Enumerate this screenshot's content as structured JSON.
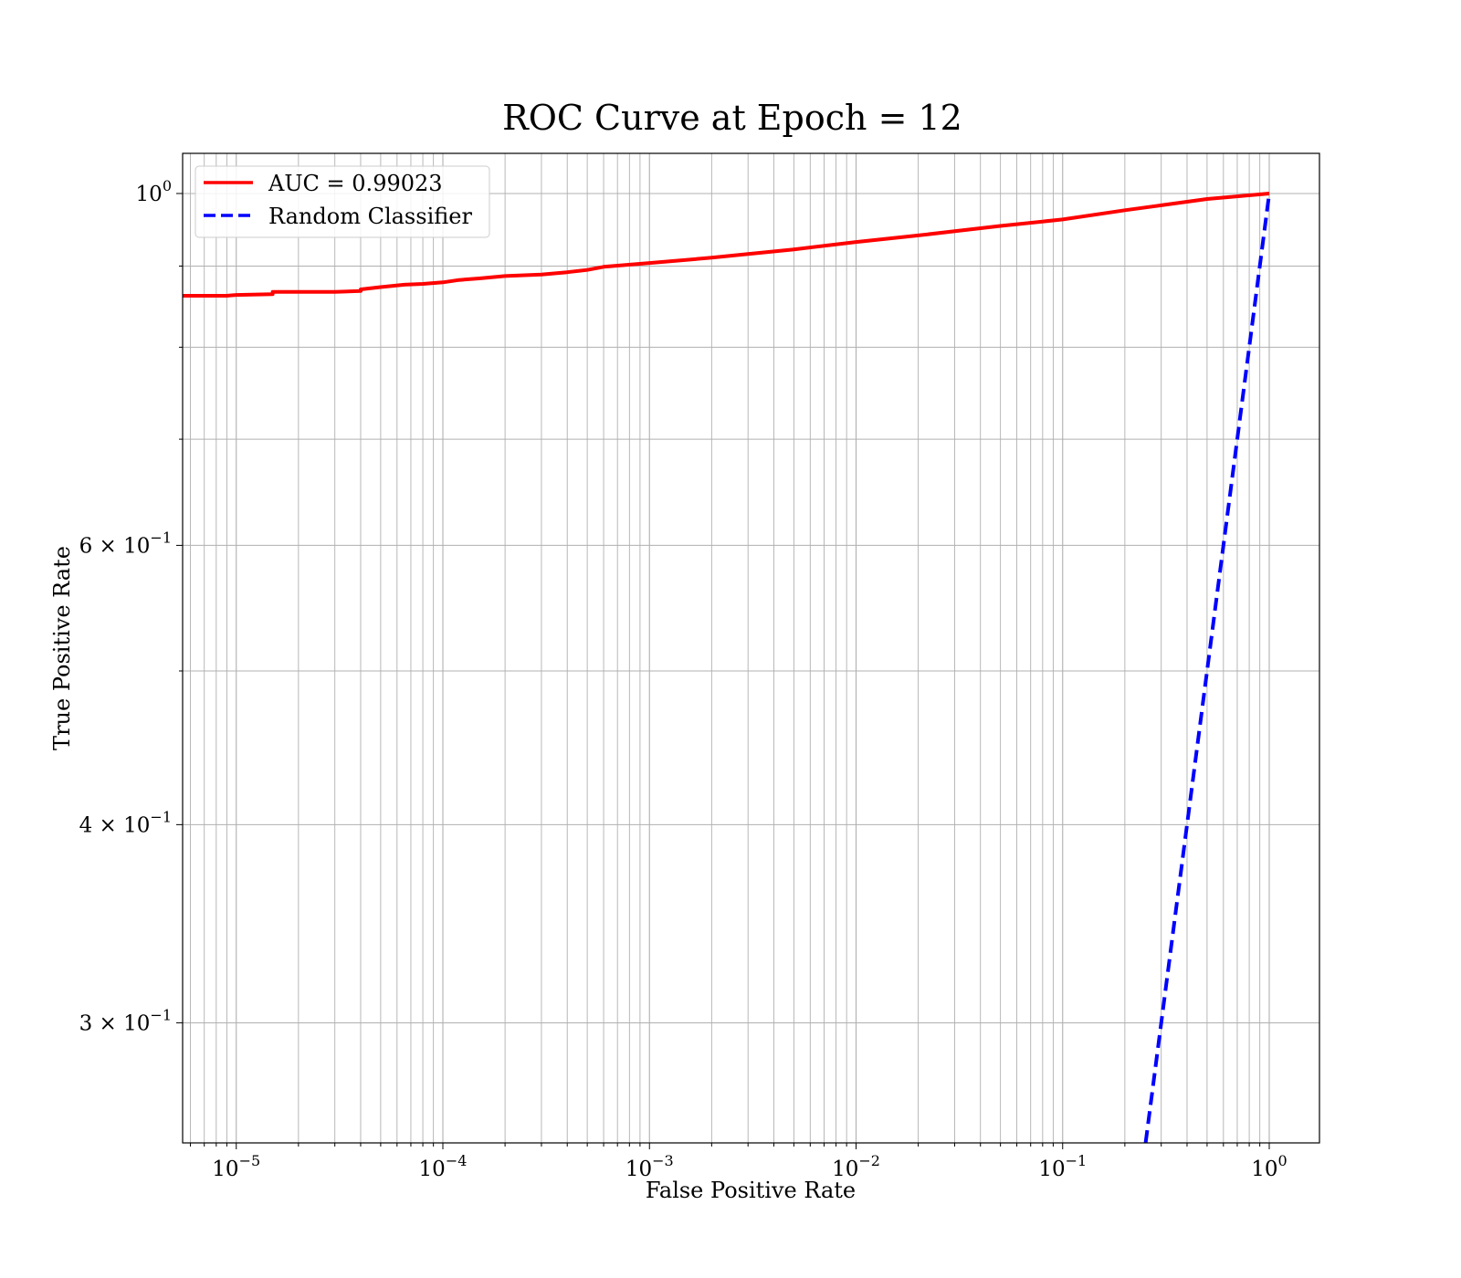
{
  "chart_data": {
    "type": "line",
    "title": "ROC Curve at Epoch = 12",
    "xlabel": "False Positive Rate",
    "ylabel": "True Positive Rate",
    "x_scale": "log",
    "y_scale": "log",
    "xlim": [
      5.5e-06,
      1.75
    ],
    "ylim": [
      0.252,
      1.06
    ],
    "grid": true,
    "legend_position": "upper-left",
    "x_ticks": [
      {
        "value": 1e-05,
        "base": "10",
        "exp": "−5"
      },
      {
        "value": 0.0001,
        "base": "10",
        "exp": "−4"
      },
      {
        "value": 0.001,
        "base": "10",
        "exp": "−3"
      },
      {
        "value": 0.01,
        "base": "10",
        "exp": "−2"
      },
      {
        "value": 0.1,
        "base": "10",
        "exp": "−1"
      },
      {
        "value": 1,
        "base": "10",
        "exp": "0"
      }
    ],
    "y_ticks": [
      {
        "value": 1.0,
        "mant": "",
        "base": "10",
        "exp": "0"
      },
      {
        "value": 0.6,
        "mant": "6 × ",
        "base": "10",
        "exp": "−1"
      },
      {
        "value": 0.4,
        "mant": "4 × ",
        "base": "10",
        "exp": "−1"
      },
      {
        "value": 0.3,
        "mant": "3 × ",
        "base": "10",
        "exp": "−1"
      }
    ],
    "y_minor_gridlines": [
      0.5,
      0.7,
      0.8,
      0.9
    ],
    "series": [
      {
        "name": "AUC = 0.99023",
        "color": "#ff0000",
        "style": "solid",
        "points": [
          [
            5.5e-06,
            0.862
          ],
          [
            9e-06,
            0.862
          ],
          [
            1e-05,
            0.863
          ],
          [
            1.5e-05,
            0.864
          ],
          [
            1.5e-05,
            0.867
          ],
          [
            2e-05,
            0.867
          ],
          [
            3e-05,
            0.867
          ],
          [
            4e-05,
            0.868
          ],
          [
            4e-05,
            0.87
          ],
          [
            5e-05,
            0.873
          ],
          [
            6.5e-05,
            0.876
          ],
          [
            8e-05,
            0.877
          ],
          [
            0.0001,
            0.879
          ],
          [
            0.00012,
            0.882
          ],
          [
            0.00015,
            0.884
          ],
          [
            0.0002,
            0.887
          ],
          [
            0.0003,
            0.889
          ],
          [
            0.0004,
            0.892
          ],
          [
            0.0005,
            0.895
          ],
          [
            0.0006,
            0.899
          ],
          [
            0.001,
            0.904
          ],
          [
            0.002,
            0.911
          ],
          [
            0.003,
            0.916
          ],
          [
            0.005,
            0.922
          ],
          [
            0.01,
            0.932
          ],
          [
            0.02,
            0.941
          ],
          [
            0.05,
            0.954
          ],
          [
            0.1,
            0.963
          ],
          [
            0.2,
            0.976
          ],
          [
            0.3,
            0.983
          ],
          [
            0.5,
            0.992
          ],
          [
            1.0,
            1.0
          ]
        ]
      },
      {
        "name": "Random Classifier",
        "color": "#0000ff",
        "style": "dashed",
        "points": [
          [
            0.252,
            0.252
          ],
          [
            1.0,
            1.0
          ]
        ]
      }
    ]
  }
}
